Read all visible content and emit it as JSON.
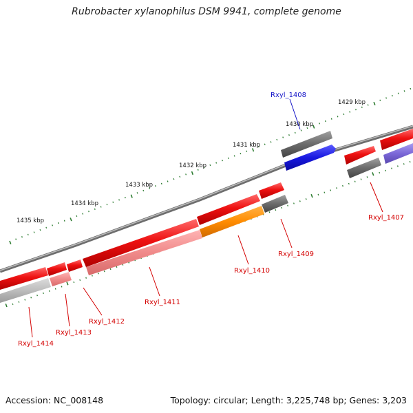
{
  "title": "Rubrobacter xylanophilus DSM 9941, complete genome",
  "footer": {
    "accession": "Accession: NC_008148",
    "summary": "Topology: circular; Length: 3,225,748 bp; Genes: 3,203"
  },
  "colors": {
    "genome_line": "#8a8a8a",
    "tick": "#2e7d32",
    "gene_red": "#ee1111",
    "gene_pink": "#f08a8a",
    "gene_orange": "#ff8c00",
    "gene_gray": "#6b6b6b",
    "gene_blue": "#1818e0",
    "gene_lightgray": "#bdbdbd",
    "gene_lavender": "#7b68d8",
    "label_red": "#d40000",
    "label_blue": "#1414c8"
  },
  "kbp_labels": [
    "1429 kbp",
    "1430 kbp",
    "1431 kbp",
    "1432 kbp",
    "1433 kbp",
    "1434 kbp",
    "1435 kbp"
  ],
  "gene_labels": [
    {
      "text": "Rxyl_1408",
      "color": "blue"
    },
    {
      "text": "Rxyl_1407",
      "color": "red"
    },
    {
      "text": "Rxyl_1409",
      "color": "red"
    },
    {
      "text": "Rxyl_1410",
      "color": "red"
    },
    {
      "text": "Rxyl_1411",
      "color": "red"
    },
    {
      "text": "Rxyl_1412",
      "color": "red"
    },
    {
      "text": "Rxyl_1413",
      "color": "red"
    },
    {
      "text": "Rxyl_1414",
      "color": "red"
    }
  ]
}
